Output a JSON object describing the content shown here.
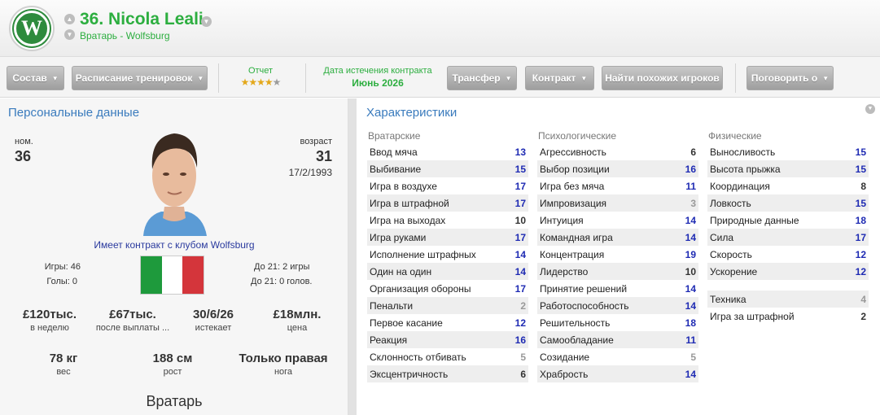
{
  "header": {
    "name": "36. Nicola Leali",
    "subtitle": "Вратарь - Wolfsburg",
    "badge_letter": "W"
  },
  "toolbar": {
    "squad_label": "Состав",
    "training_label": "Расписание тренировок",
    "report_label": "Отчет",
    "report_stars": 4.5,
    "contract_expiry_label": "Дата истечения контракта",
    "contract_expiry_value": "Июнь 2026",
    "transfer_label": "Трансфер",
    "contract_label": "Контракт",
    "find_similar_label": "Найти похожих игроков",
    "talk_label": "Поговорить о"
  },
  "personal": {
    "title": "Персональные данные",
    "number_label": "ном.",
    "number": "36",
    "age_label": "возраст",
    "age": "31",
    "dob": "17/2/1993",
    "contract_text": "Имеет контракт с клубом Wolfsburg",
    "apps": "Игры: 46",
    "goals": "Голы: 0",
    "u21_apps": "До 21: 2 игры",
    "u21_goals": "До 21: 0 голов.",
    "flag_colors": [
      "#1e9a3c",
      "#ffffff",
      "#d4353b"
    ],
    "finance": [
      {
        "value": "£120тыс.",
        "label": "в неделю"
      },
      {
        "value": "£67тыс.",
        "label": "после выплаты ..."
      },
      {
        "value": "30/6/26",
        "label": "истекает"
      },
      {
        "value": "£18млн.",
        "label": "цена"
      }
    ],
    "physical": [
      {
        "value": "78 кг",
        "label": "вес"
      },
      {
        "value": "188 см",
        "label": "рост"
      },
      {
        "value": "Только правая",
        "label": "нога"
      }
    ],
    "position": "Вратарь"
  },
  "attributes": {
    "title": "Характеристики",
    "goalkeeping": {
      "header": "Вратарские",
      "rows": [
        {
          "name": "Ввод мяча",
          "value": "13",
          "tier": "high"
        },
        {
          "name": "Выбивание",
          "value": "15",
          "tier": "high"
        },
        {
          "name": "Игра в воздухе",
          "value": "17",
          "tier": "high"
        },
        {
          "name": "Игра в штрафной",
          "value": "17",
          "tier": "high"
        },
        {
          "name": "Игра на выходах",
          "value": "10",
          "tier": "mid"
        },
        {
          "name": "Игра руками",
          "value": "17",
          "tier": "high"
        },
        {
          "name": "Исполнение штрафных",
          "value": "14",
          "tier": "high"
        },
        {
          "name": "Один на один",
          "value": "14",
          "tier": "high"
        },
        {
          "name": "Организация обороны",
          "value": "17",
          "tier": "high"
        },
        {
          "name": "Пенальти",
          "value": "2",
          "tier": "low"
        },
        {
          "name": "Первое касание",
          "value": "12",
          "tier": "high"
        },
        {
          "name": "Реакция",
          "value": "16",
          "tier": "high"
        },
        {
          "name": "Склонность отбивать",
          "value": "5",
          "tier": "low"
        },
        {
          "name": "Эксцентричность",
          "value": "6",
          "tier": "mid"
        }
      ]
    },
    "mental": {
      "header": "Психологические",
      "rows": [
        {
          "name": "Агрессивность",
          "value": "6",
          "tier": "mid"
        },
        {
          "name": "Выбор позиции",
          "value": "16",
          "tier": "high"
        },
        {
          "name": "Игра без мяча",
          "value": "11",
          "tier": "high"
        },
        {
          "name": "Импровизация",
          "value": "3",
          "tier": "low"
        },
        {
          "name": "Интуиция",
          "value": "14",
          "tier": "high"
        },
        {
          "name": "Командная игра",
          "value": "14",
          "tier": "high"
        },
        {
          "name": "Концентрация",
          "value": "19",
          "tier": "high"
        },
        {
          "name": "Лидерство",
          "value": "10",
          "tier": "mid"
        },
        {
          "name": "Принятие решений",
          "value": "14",
          "tier": "high"
        },
        {
          "name": "Работоспособность",
          "value": "14",
          "tier": "high"
        },
        {
          "name": "Решительность",
          "value": "18",
          "tier": "high"
        },
        {
          "name": "Самообладание",
          "value": "11",
          "tier": "high"
        },
        {
          "name": "Созидание",
          "value": "5",
          "tier": "low"
        },
        {
          "name": "Храбрость",
          "value": "14",
          "tier": "high"
        }
      ]
    },
    "physical": {
      "header": "Физические",
      "rows": [
        {
          "name": "Выносливость",
          "value": "15",
          "tier": "high"
        },
        {
          "name": "Высота прыжка",
          "value": "15",
          "tier": "high"
        },
        {
          "name": "Координация",
          "value": "8",
          "tier": "mid"
        },
        {
          "name": "Ловкость",
          "value": "15",
          "tier": "high"
        },
        {
          "name": "Природные данные",
          "value": "18",
          "tier": "high"
        },
        {
          "name": "Сила",
          "value": "17",
          "tier": "high"
        },
        {
          "name": "Скорость",
          "value": "12",
          "tier": "high"
        },
        {
          "name": "Ускорение",
          "value": "12",
          "tier": "high"
        }
      ]
    },
    "technical": {
      "rows": [
        {
          "name": "Техника",
          "value": "4",
          "tier": "low"
        },
        {
          "name": "Игра за штрафной",
          "value": "2",
          "tier": "mid"
        }
      ]
    }
  }
}
